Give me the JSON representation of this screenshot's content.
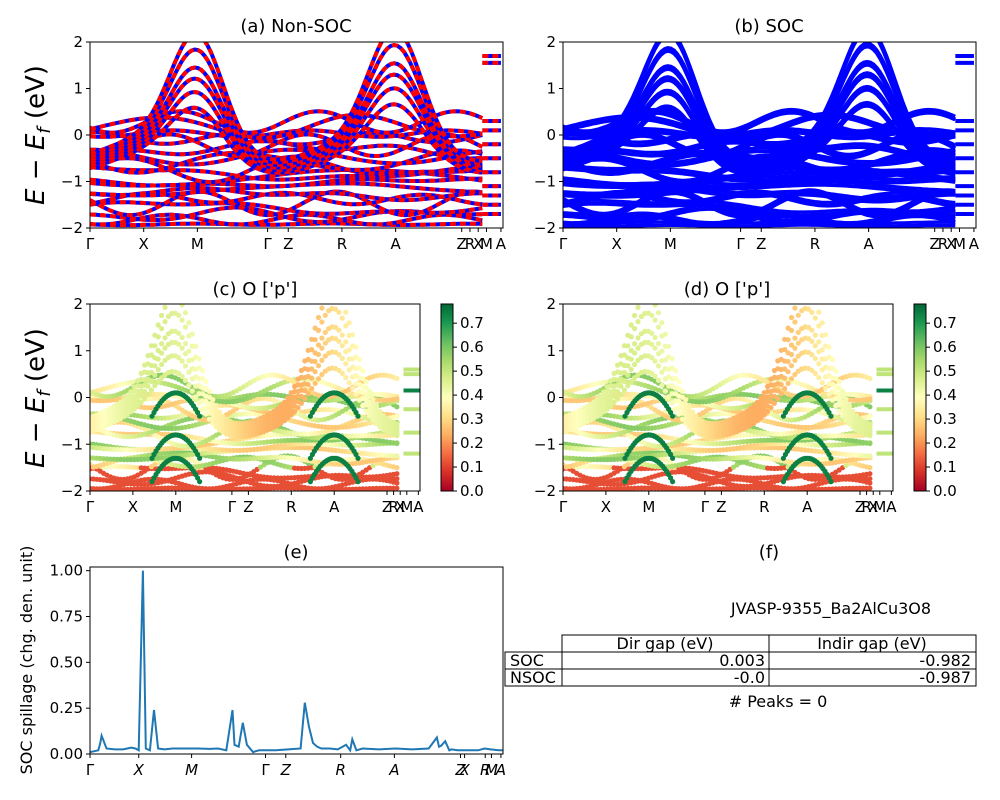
{
  "colors": {
    "nonsoc_a": "#0000ff",
    "nonsoc_b": "#ff0000",
    "soc": "#0000ff",
    "spillage": "#1f77b4",
    "colormap": "RdYlGn"
  },
  "band_kpath": [
    "Γ",
    "X",
    "M",
    "Γ",
    "Z",
    "R",
    "A",
    "Z",
    "R",
    "X",
    "M",
    "A"
  ],
  "band_kpath_positions": [
    0,
    0.13,
    0.26,
    0.43,
    0.48,
    0.61,
    0.74,
    0.9,
    0.92,
    0.94,
    0.96,
    0.995
  ],
  "band_ylabel": "E − E_f (eV)",
  "band_yticks": [
    "2",
    "1",
    "0",
    "−1",
    "−2"
  ],
  "colorbar_ticks": [
    "0.7",
    "0.6",
    "0.5",
    "0.4",
    "0.3",
    "0.2",
    "0.1",
    "0.0"
  ],
  "chart_data": [
    {
      "panel": "a",
      "type": "line",
      "title": "(a) Non-SOC",
      "ylabel": "E − E_f (eV)",
      "ylim": [
        -2,
        2
      ],
      "xlabel": ""
    },
    {
      "panel": "b",
      "type": "line",
      "title": "(b) SOC",
      "ylim": [
        -2,
        2
      ]
    },
    {
      "panel": "c",
      "type": "scatter",
      "title": "(c)  O ['p']",
      "ylabel": "E − E_f (eV)",
      "ylim": [
        -2,
        2
      ],
      "colorbar_range": [
        0.0,
        0.78
      ]
    },
    {
      "panel": "d",
      "type": "scatter",
      "title": "(d) O ['p']",
      "ylim": [
        -2,
        2
      ],
      "colorbar_range": [
        0.0,
        0.78
      ]
    },
    {
      "panel": "e",
      "type": "line",
      "title": "(e)",
      "ylabel": "SOC spillage (chg. den. unit)",
      "ylim": [
        0,
        1.02
      ],
      "yticks": [
        "1.00",
        "0.75",
        "0.50",
        "0.25",
        "0.00"
      ],
      "xticks": [
        "Γ",
        "X",
        "M",
        "Γ",
        "Z",
        "R",
        "A",
        "Z",
        "X",
        "R",
        "M",
        "A"
      ],
      "xtick_positions": [
        0,
        0.118,
        0.246,
        0.425,
        0.474,
        0.607,
        0.737,
        0.897,
        0.907,
        0.957,
        0.972,
        0.995
      ],
      "x": [
        0,
        0.02,
        0.025,
        0.028,
        0.04,
        0.06,
        0.08,
        0.09,
        0.1,
        0.11,
        0.118,
        0.128,
        0.135,
        0.145,
        0.155,
        0.165,
        0.18,
        0.2,
        0.23,
        0.26,
        0.29,
        0.31,
        0.33,
        0.345,
        0.35,
        0.36,
        0.37,
        0.38,
        0.395,
        0.4,
        0.41,
        0.425,
        0.45,
        0.48,
        0.51,
        0.52,
        0.53,
        0.54,
        0.55,
        0.56,
        0.57,
        0.58,
        0.6,
        0.62,
        0.63,
        0.635,
        0.645,
        0.66,
        0.7,
        0.74,
        0.78,
        0.82,
        0.84,
        0.845,
        0.85,
        0.86,
        0.87,
        0.875,
        0.89,
        0.9,
        0.92,
        0.94,
        0.955,
        0.97,
        0.99,
        1.0
      ],
      "y": [
        0.01,
        0.02,
        0.06,
        0.1,
        0.03,
        0.025,
        0.025,
        0.03,
        0.035,
        0.03,
        0.02,
        1.0,
        0.03,
        0.02,
        0.24,
        0.03,
        0.025,
        0.03,
        0.03,
        0.03,
        0.028,
        0.03,
        0.02,
        0.24,
        0.05,
        0.04,
        0.17,
        0.05,
        0.01,
        0.015,
        0.02,
        0.02,
        0.02,
        0.025,
        0.03,
        0.28,
        0.15,
        0.06,
        0.04,
        0.03,
        0.03,
        0.03,
        0.025,
        0.05,
        0.02,
        0.08,
        0.02,
        0.03,
        0.025,
        0.03,
        0.025,
        0.03,
        0.09,
        0.04,
        0.045,
        0.07,
        0.02,
        0.025,
        0.02,
        0.02,
        0.02,
        0.02,
        0.03,
        0.025,
        0.02,
        0.02
      ]
    }
  ],
  "panel_f": {
    "title": "(f)",
    "id_text": "JVASP-9355_Ba2AlCu3O8",
    "table": {
      "headers": [
        "Dir gap (eV)",
        "Indir gap (eV)"
      ],
      "rows": [
        {
          "label": "SOC",
          "dir": "0.003",
          "indir": "-0.982"
        },
        {
          "label": "NSOC",
          "dir": "-0.0",
          "indir": "-0.987"
        }
      ]
    },
    "peaks_text": "# Peaks = 0"
  }
}
